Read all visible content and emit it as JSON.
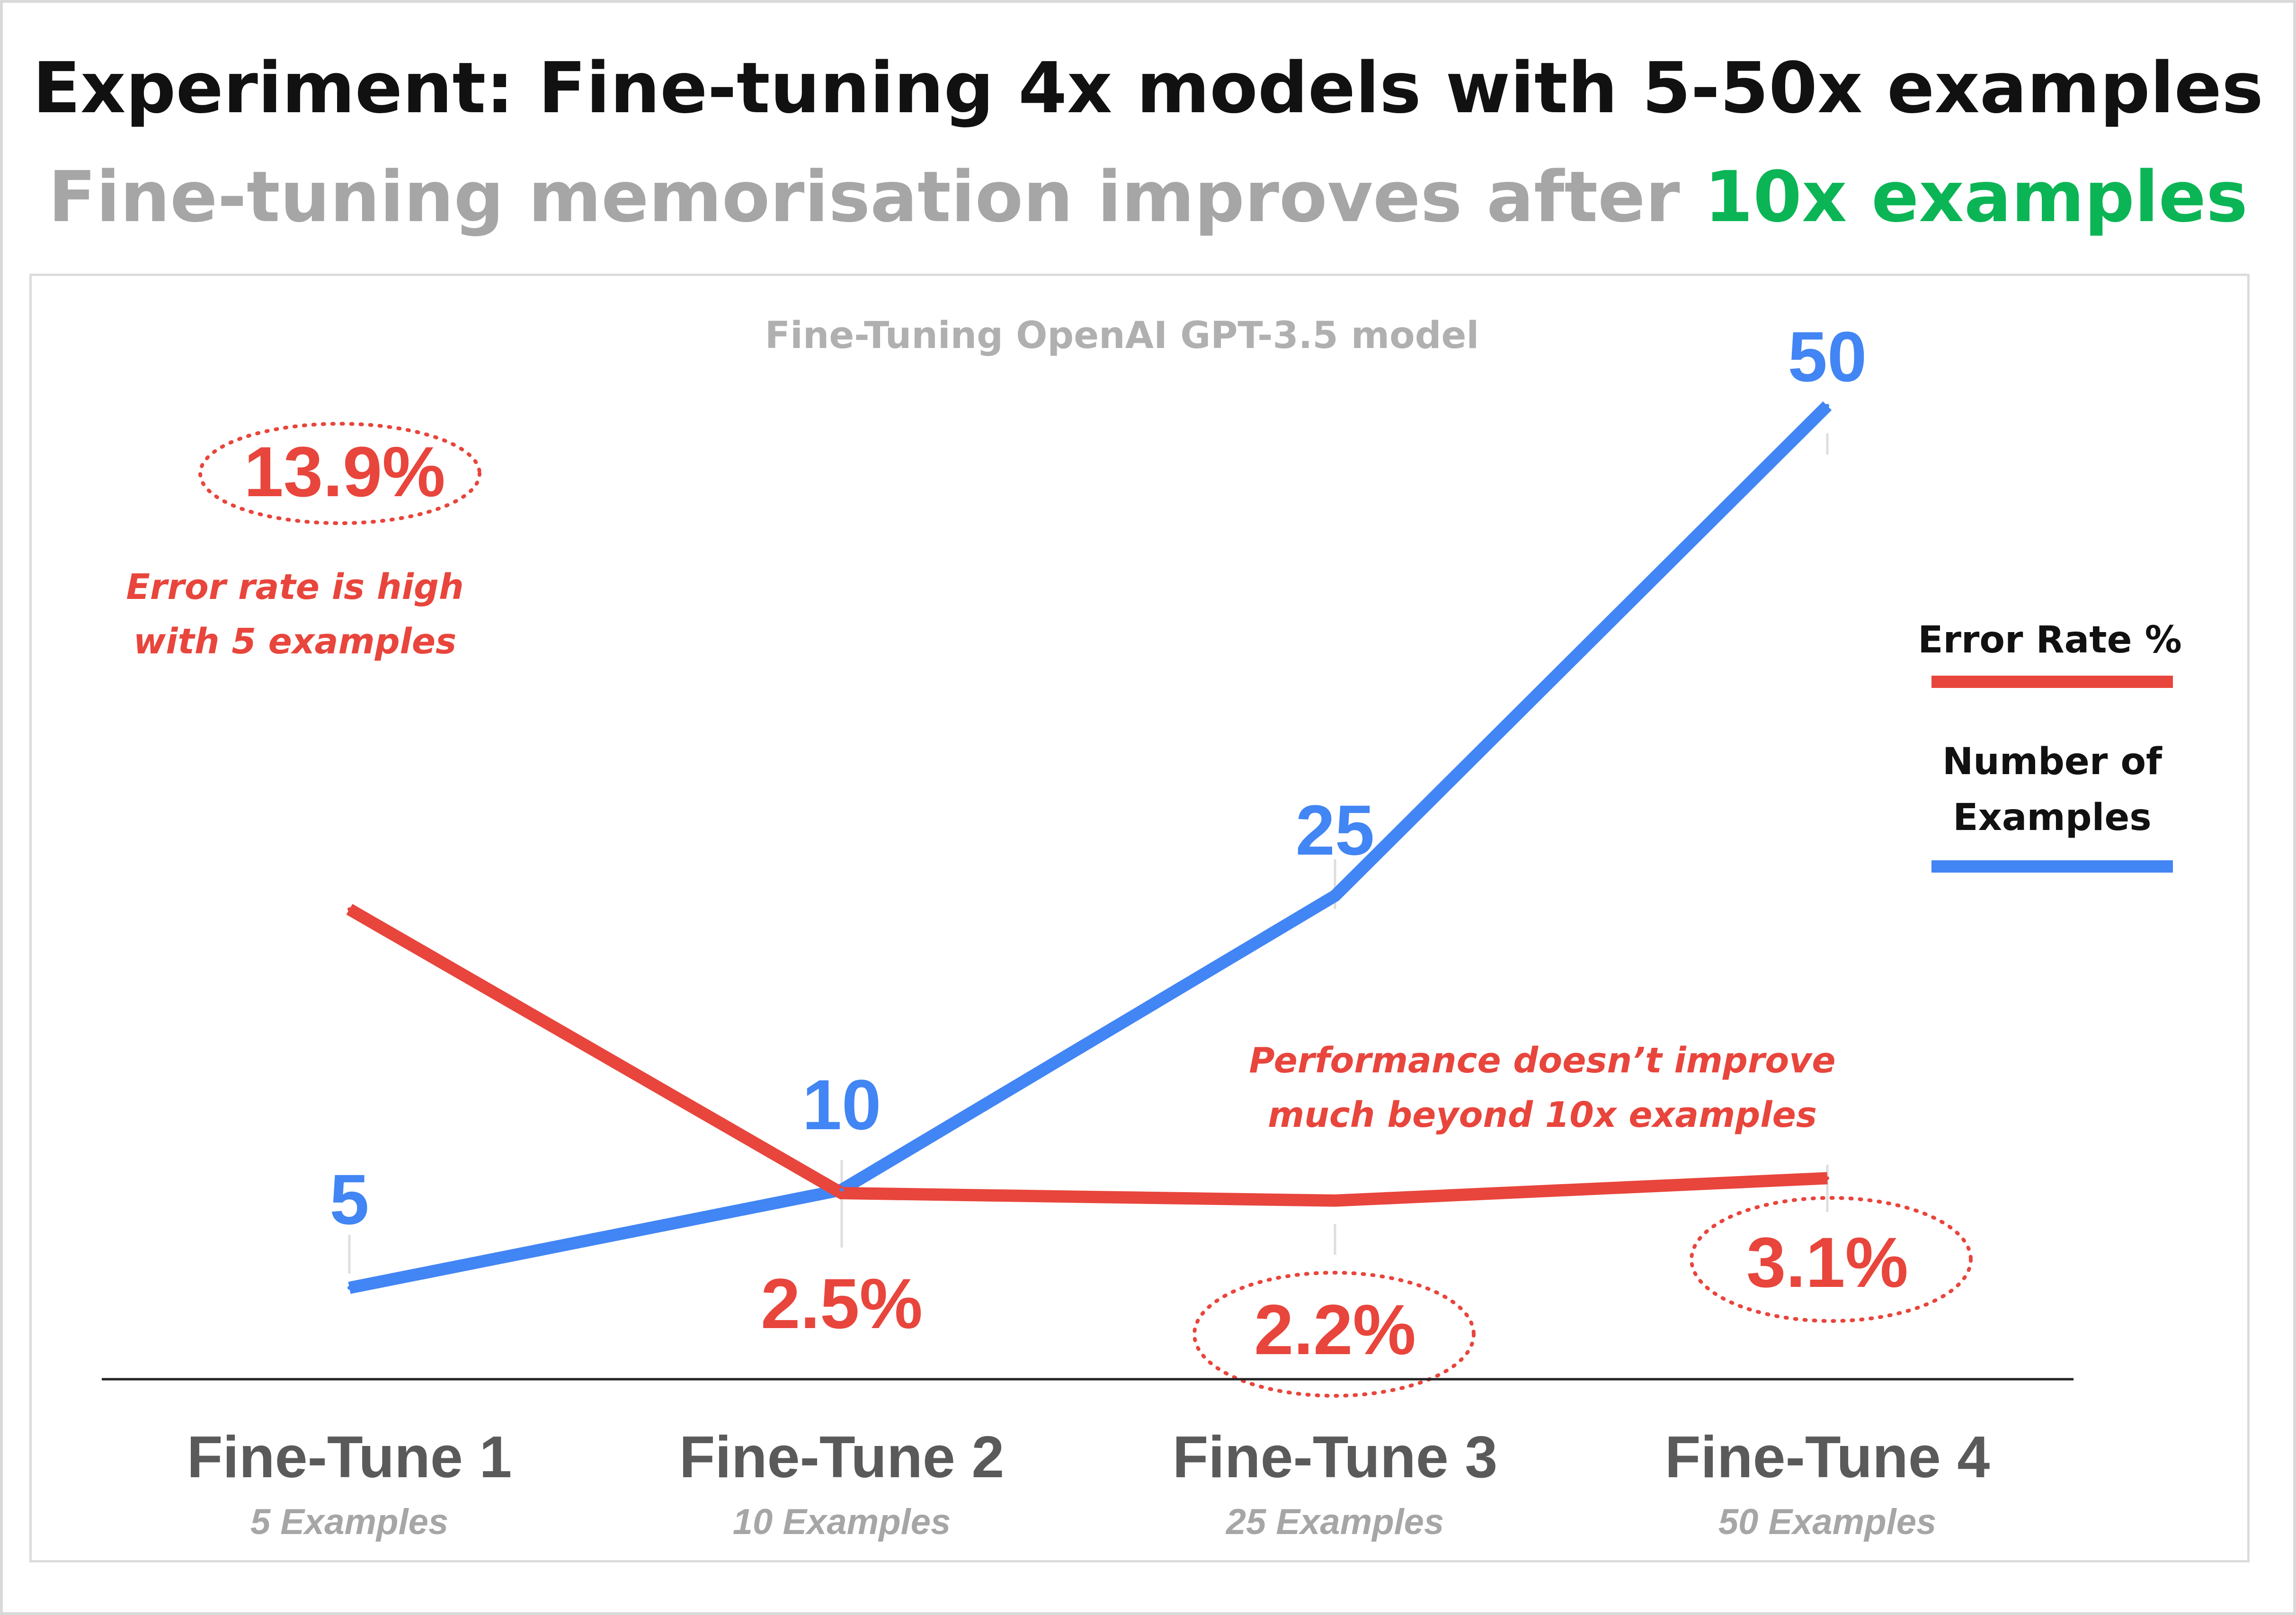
{
  "title_parts": {
    "main": "Experiment: Fine-tuning 4x models with 5-50x examples",
    "subtitle_prefix": "Fine-tuning memorisation improves after ",
    "subtitle_highlight": "10x examples"
  },
  "colors": {
    "error": "#e8453c",
    "examples": "#4285f4",
    "highlight": "#0bb555",
    "subtitle": "#a6a6a6",
    "axis_label": "#5a5a5a",
    "axis_sublabel": "#a6a6a6"
  },
  "chart_data": {
    "type": "line",
    "title": "Fine-Tuning OpenAI GPT-3.5 model",
    "categories": [
      "Fine-Tune 1",
      "Fine-Tune 2",
      "Fine-Tune 3",
      "Fine-Tune 4"
    ],
    "category_sublabels": [
      "5 Examples",
      "10 Examples",
      "25 Examples",
      "50 Examples"
    ],
    "series": [
      {
        "name": "Error Rate %",
        "values": [
          13.9,
          2.5,
          2.2,
          3.1
        ],
        "labels": [
          "13.9%",
          "2.5%",
          "2.2%",
          "3.1%"
        ],
        "color": "#e8453c",
        "circled": [
          true,
          false,
          true,
          true
        ]
      },
      {
        "name": "Number of Examples",
        "values": [
          5,
          10,
          25,
          50
        ],
        "labels": [
          "5",
          "10",
          "25",
          "50"
        ],
        "color": "#4285f4"
      }
    ],
    "legend_position": "right",
    "annotations": [
      {
        "lines": [
          "Error rate is high",
          "with 5 examples"
        ],
        "anchor": "Fine-Tune 1"
      },
      {
        "lines": [
          "Performance doesn’t improve",
          "much beyond 10x examples"
        ],
        "anchor": "Fine-Tune 3"
      }
    ],
    "grid": false
  }
}
